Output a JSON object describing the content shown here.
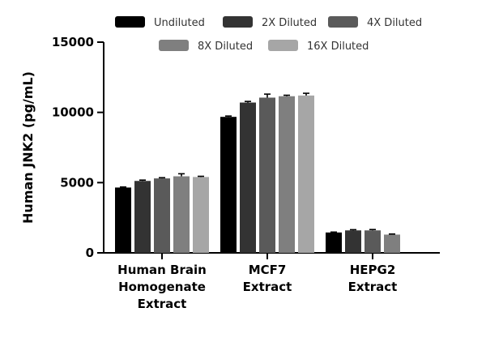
{
  "chart_data": {
    "type": "bar",
    "categories": [
      [
        "Human Brain",
        "Homogenate",
        "Extract"
      ],
      [
        "MCF7",
        "Extract"
      ],
      [
        "HEPG2",
        "Extract"
      ]
    ],
    "ylabel": "Human JNK2 (pg/mL)",
    "ylim": [
      0,
      15000
    ],
    "yticks": [
      0,
      5000,
      10000,
      15000
    ],
    "legend_position": "top",
    "series": [
      {
        "name": "Undiluted",
        "color": "#000000",
        "values": [
          4650,
          9680,
          1450
        ],
        "errors": [
          40,
          60,
          30
        ]
      },
      {
        "name": "2X Diluted",
        "color": "#333333",
        "values": [
          5120,
          10700,
          1600
        ],
        "errors": [
          60,
          80,
          50
        ]
      },
      {
        "name": "4X Diluted",
        "color": "#5a5a5a",
        "values": [
          5300,
          11050,
          1600
        ],
        "errors": [
          50,
          250,
          60
        ]
      },
      {
        "name": "8X Diluted",
        "color": "#7f7f7f",
        "values": [
          5450,
          11150,
          1300
        ],
        "errors": [
          180,
          70,
          40
        ]
      },
      {
        "name": "16X Diluted",
        "color": "#a6a6a6",
        "values": [
          5400,
          11200,
          null
        ],
        "errors": [
          50,
          160,
          null
        ]
      }
    ]
  }
}
